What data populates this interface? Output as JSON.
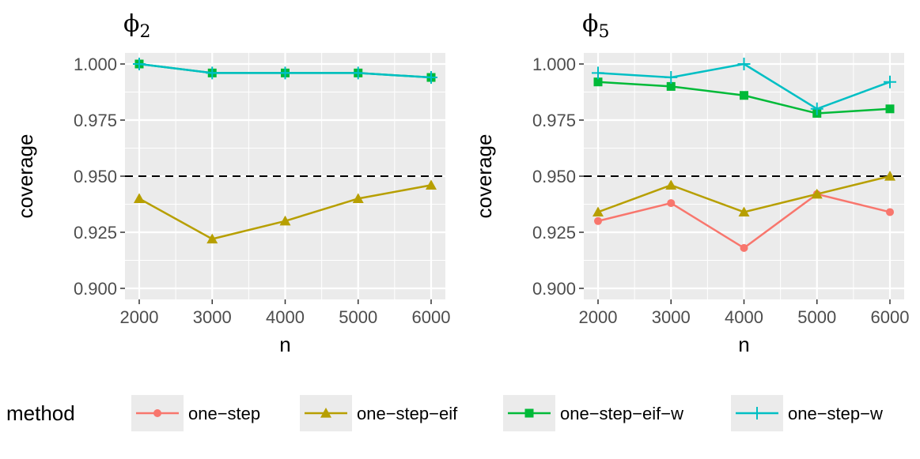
{
  "chart_data": [
    {
      "type": "line",
      "title": "ϕ",
      "title_subscript": "2",
      "xlabel": "n",
      "ylabel": "coverage",
      "x": [
        2000,
        3000,
        4000,
        5000,
        6000
      ],
      "x_ticks": [
        "2000",
        "3000",
        "4000",
        "5000",
        "6000"
      ],
      "ylim": [
        0.9,
        1.0
      ],
      "y_ticks": [
        "0.900",
        "0.925",
        "0.950",
        "0.975",
        "1.000"
      ],
      "reference_line": 0.95,
      "series": [
        {
          "name": "one-step-eif",
          "values": [
            0.94,
            0.922,
            0.93,
            0.94,
            0.946
          ]
        },
        {
          "name": "one-step-eif-w",
          "values": [
            1.0,
            0.996,
            0.996,
            0.996,
            0.994
          ]
        },
        {
          "name": "one-step-w",
          "values": [
            1.0,
            0.996,
            0.996,
            0.996,
            0.994
          ]
        }
      ]
    },
    {
      "type": "line",
      "title": "ϕ",
      "title_subscript": "5",
      "xlabel": "n",
      "ylabel": "coverage",
      "x": [
        2000,
        3000,
        4000,
        5000,
        6000
      ],
      "x_ticks": [
        "2000",
        "3000",
        "4000",
        "5000",
        "6000"
      ],
      "ylim": [
        0.9,
        1.0
      ],
      "y_ticks": [
        "0.900",
        "0.925",
        "0.950",
        "0.975",
        "1.000"
      ],
      "reference_line": 0.95,
      "series": [
        {
          "name": "one-step",
          "values": [
            0.93,
            0.938,
            0.918,
            0.942,
            0.934
          ]
        },
        {
          "name": "one-step-eif",
          "values": [
            0.934,
            0.946,
            0.934,
            0.942,
            0.95
          ]
        },
        {
          "name": "one-step-eif-w",
          "values": [
            0.992,
            0.99,
            0.986,
            0.978,
            0.98
          ]
        },
        {
          "name": "one-step-w",
          "values": [
            0.996,
            0.994,
            1.0,
            0.98,
            0.992
          ]
        }
      ]
    }
  ],
  "legend": {
    "title": "method",
    "items": [
      {
        "label": "one−step",
        "series": "one-step"
      },
      {
        "label": "one−step−eif",
        "series": "one-step-eif"
      },
      {
        "label": "one−step−eif−w",
        "series": "one-step-eif-w"
      },
      {
        "label": "one−step−w",
        "series": "one-step-w"
      }
    ]
  },
  "styles": {
    "one-step": {
      "color": "#F8766D",
      "shape": "circle"
    },
    "one-step-eif": {
      "color": "#B79F00",
      "shape": "triangle"
    },
    "one-step-eif-w": {
      "color": "#00BA38",
      "shape": "square"
    },
    "one-step-w": {
      "color": "#00BFC4",
      "shape": "plus"
    },
    "panel_bg": "#EBEBEB",
    "grid": "#FFFFFF",
    "reference_line_color": "#000000"
  }
}
